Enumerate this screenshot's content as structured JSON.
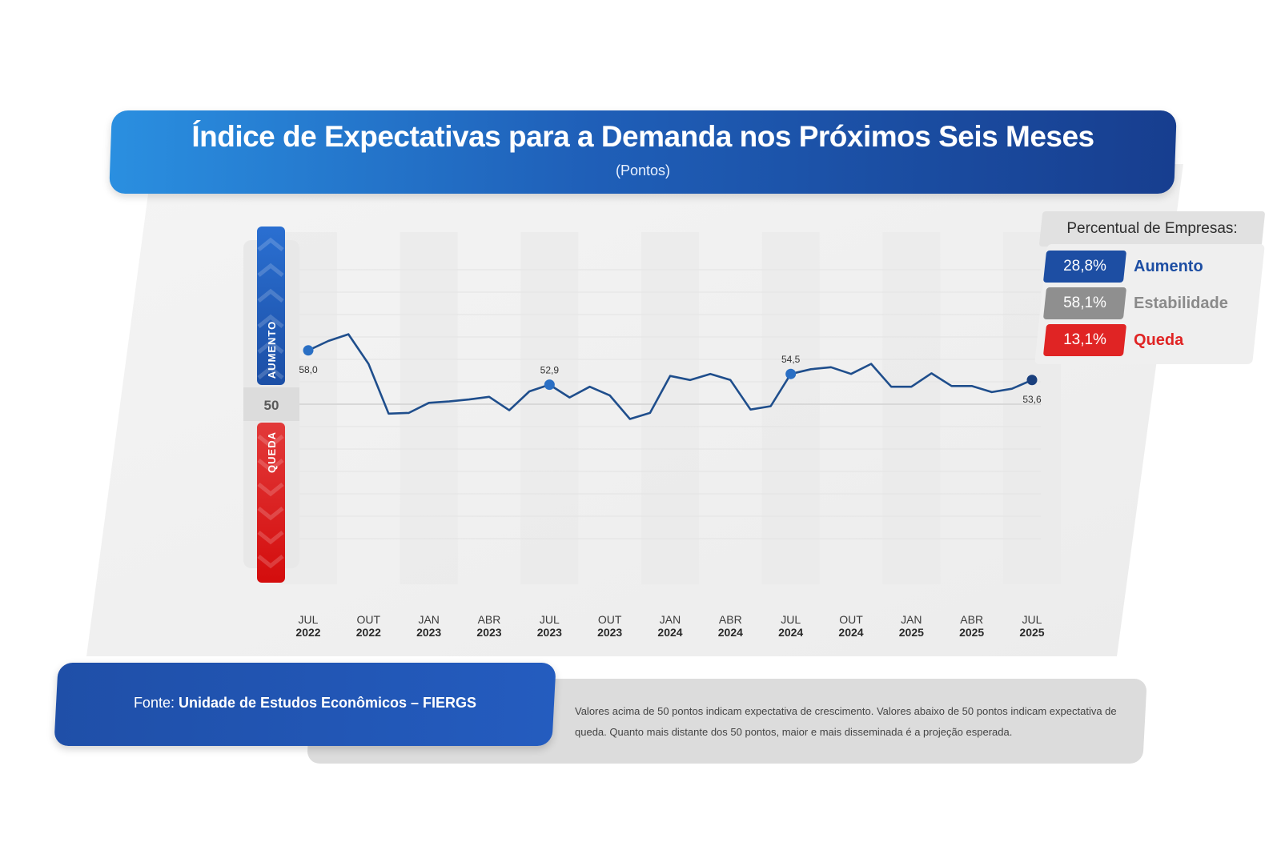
{
  "header": {
    "title": "Índice de Expectativas para a Demanda nos Próximos Seis Meses",
    "subtitle": "(Pontos)"
  },
  "scale": {
    "upper_label": "AUMENTO",
    "lower_label": "QUEDA",
    "midpoint_label": "50"
  },
  "legend": {
    "title": "Percentual de Empresas:",
    "items": [
      {
        "value": "28,8%",
        "label": "Aumento",
        "color": "#1d4ea3",
        "label_color": "#1d4ea3"
      },
      {
        "value": "58,1%",
        "label": "Estabilidade",
        "color": "#8f8f8f",
        "label_color": "#8a8a8a"
      },
      {
        "value": "13,1%",
        "label": "Queda",
        "color": "#e02424",
        "label_color": "#e02424"
      }
    ]
  },
  "footer": {
    "source_prefix": "Fonte: ",
    "source_name": "Unidade de Estudos Econômicos – FIERGS",
    "note_line1": "Valores acima de 50 pontos indicam expectativa de crescimento. Valores abaixo de 50 pontos indicam expectativa de",
    "note_line2": "queda. Quanto mais distante dos 50 pontos, maior e mais disseminada é a projeção esperada."
  },
  "chart_data": {
    "type": "line",
    "title": "Índice de Expectativas para a Demanda nos Próximos Seis Meses",
    "subtitle": "(Pontos)",
    "xlabel": "",
    "ylabel": "",
    "reference_line": 50,
    "ylim": [
      30,
      68
    ],
    "x": [
      "JUL 2022",
      "AGO 2022",
      "SET 2022",
      "OUT 2022",
      "NOV 2022",
      "DEZ 2022",
      "JAN 2023",
      "FEV 2023",
      "MAR 2023",
      "ABR 2023",
      "MAI 2023",
      "JUN 2023",
      "JUL 2023",
      "AGO 2023",
      "SET 2023",
      "OUT 2023",
      "NOV 2023",
      "DEZ 2023",
      "JAN 2024",
      "FEV 2024",
      "MAR 2024",
      "ABR 2024",
      "MAI 2024",
      "JUN 2024",
      "JUL 2024",
      "AGO 2024",
      "SET 2024",
      "OUT 2024",
      "NOV 2024",
      "DEZ 2024",
      "JAN 2025",
      "FEV 2025",
      "MAR 2025",
      "ABR 2025",
      "MAI 2025",
      "JUN 2025",
      "JUL 2025"
    ],
    "series": [
      {
        "values": [
          58.0,
          59.4,
          60.4,
          56.0,
          48.6,
          48.7,
          50.2,
          50.4,
          50.7,
          51.1,
          49.1,
          51.9,
          52.9,
          51.0,
          52.6,
          51.3,
          47.8,
          48.7,
          54.2,
          53.6,
          54.5,
          53.6,
          49.2,
          49.7,
          54.5,
          55.2,
          55.5,
          54.5,
          56.0,
          52.6,
          52.6,
          54.6,
          52.7,
          52.7,
          51.8,
          52.3,
          53.6
        ]
      }
    ],
    "x_tick_labels": [
      {
        "m": "JUL",
        "y": "2022"
      },
      {
        "m": "OUT",
        "y": "2022"
      },
      {
        "m": "JAN",
        "y": "2023"
      },
      {
        "m": "ABR",
        "y": "2023"
      },
      {
        "m": "JUL",
        "y": "2023"
      },
      {
        "m": "OUT",
        "y": "2023"
      },
      {
        "m": "JAN",
        "y": "2024"
      },
      {
        "m": "ABR",
        "y": "2024"
      },
      {
        "m": "JUL",
        "y": "2024"
      },
      {
        "m": "OUT",
        "y": "2024"
      },
      {
        "m": "JAN",
        "y": "2025"
      },
      {
        "m": "ABR",
        "y": "2025"
      },
      {
        "m": "JUL",
        "y": "2025"
      }
    ],
    "data_labels": [
      {
        "index": 0,
        "text": "58,0"
      },
      {
        "index": 12,
        "text": "52,9"
      },
      {
        "index": 24,
        "text": "54,5"
      },
      {
        "index": 36,
        "text": "53,6"
      }
    ],
    "line_color": "#1f4e8c"
  }
}
